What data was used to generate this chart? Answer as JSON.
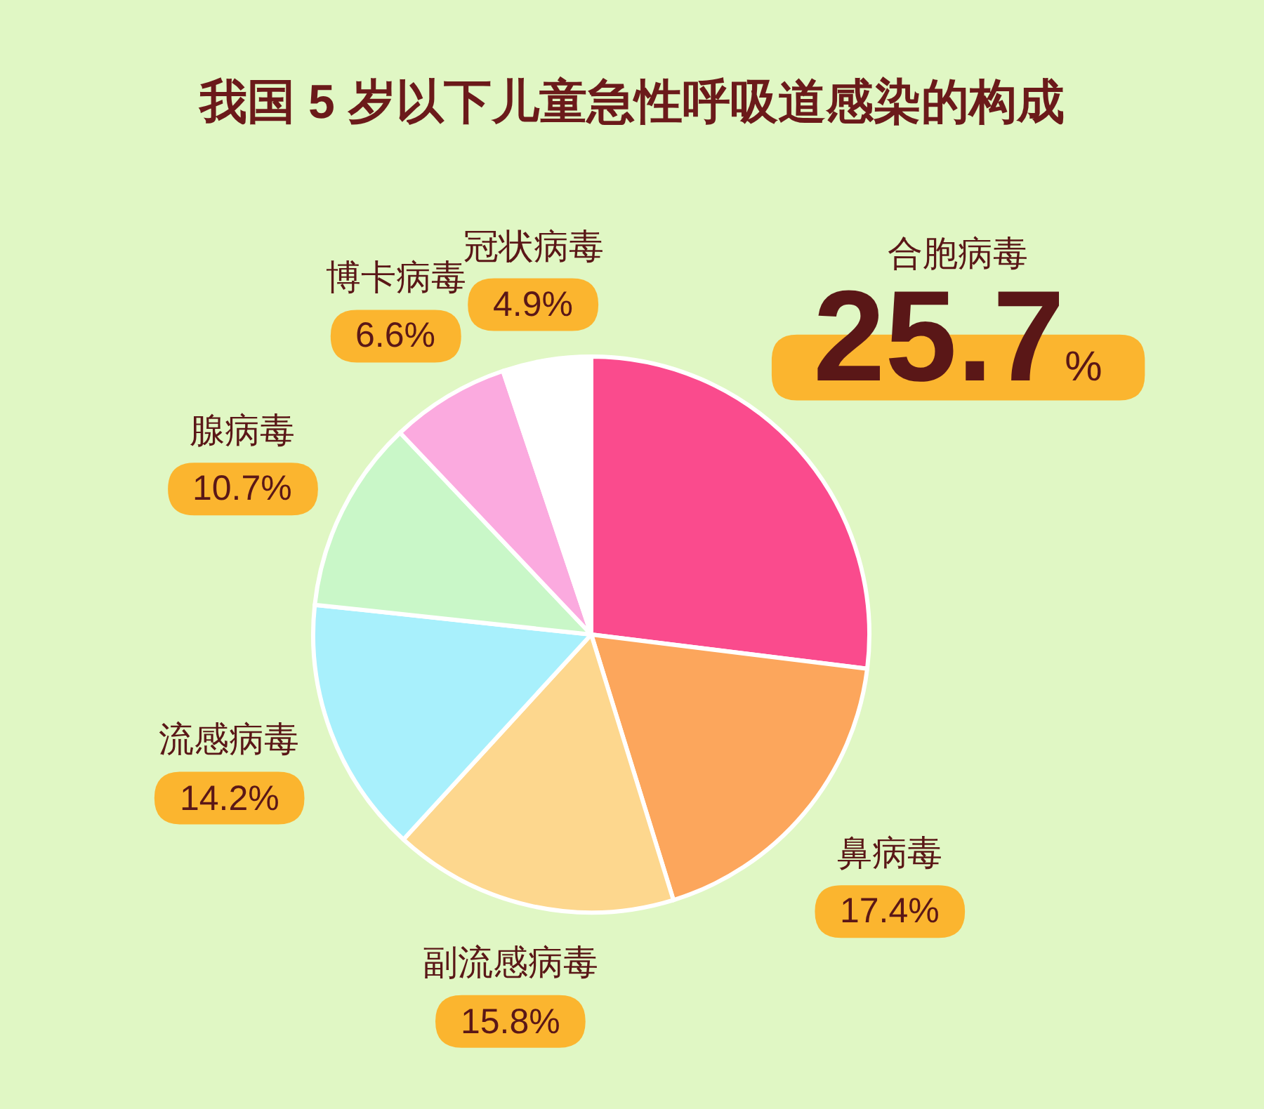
{
  "chart_data": {
    "type": "pie",
    "title": "我国 5 岁以下儿童急性呼吸道感染的构成",
    "categories": [
      "合胞病毒",
      "鼻病毒",
      "副流感病毒",
      "流感病毒",
      "腺病毒",
      "博卡病毒",
      "冠状病毒"
    ],
    "values": [
      25.7,
      17.4,
      15.8,
      14.2,
      10.7,
      6.6,
      4.9
    ],
    "colors": [
      "#fa4b8d",
      "#fca65c",
      "#fdd78e",
      "#a8f0fc",
      "#c9f7c8",
      "#fbaadf",
      "#ffffff"
    ],
    "value_labels": [
      "25.7%",
      "17.4%",
      "15.8%",
      "14.2%",
      "10.7%",
      "6.6%",
      "4.9%"
    ],
    "legend": false
  }
}
